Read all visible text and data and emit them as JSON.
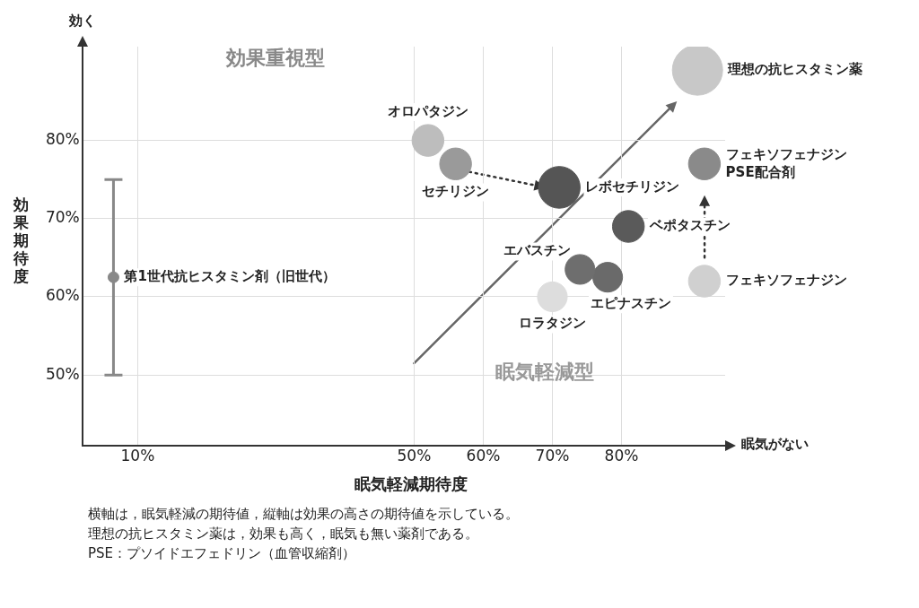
{
  "chart_data": {
    "type": "bubble",
    "xlabel": "眠気軽減期待度",
    "ylabel": "効果期待度",
    "xlim": [
      2,
      95
    ],
    "xticks": [
      {
        "value": 10,
        "label": "10%"
      },
      {
        "value": 50,
        "label": "50%"
      },
      {
        "value": 60,
        "label": "60%"
      },
      {
        "value": 70,
        "label": "70%"
      },
      {
        "value": 80,
        "label": "80%"
      }
    ],
    "ylim": [
      41,
      92
    ],
    "yticks": [
      {
        "value": 50,
        "label": "50%"
      },
      {
        "value": 60,
        "label": "60%"
      },
      {
        "value": 70,
        "label": "70%"
      },
      {
        "value": 80,
        "label": "80%"
      }
    ],
    "grid": true,
    "legend": false,
    "marker": "circle",
    "series": [
      {
        "name": "オロパタジン",
        "color": "#bdbdbd",
        "x": [
          52
        ],
        "values": [
          80
        ],
        "sizes": [
          0.4
        ]
      },
      {
        "name": "セチリジン",
        "color": "#9a9a9a",
        "x": [
          56
        ],
        "values": [
          77
        ],
        "sizes": [
          0.4
        ]
      },
      {
        "name": "レボセチリジン",
        "color": "#555555",
        "x": [
          71
        ],
        "values": [
          74
        ],
        "sizes": [
          0.69
        ]
      },
      {
        "name": "エバスチン",
        "color": "#6e6e6e",
        "x": [
          74
        ],
        "values": [
          63.5
        ],
        "sizes": [
          0.35
        ]
      },
      {
        "name": "ベポタスチン",
        "color": "#5a5a5a",
        "x": [
          81
        ],
        "values": [
          69
        ],
        "sizes": [
          0.4
        ]
      },
      {
        "name": "エピナスチン",
        "color": "#6a6a6a",
        "x": [
          78
        ],
        "values": [
          62.5
        ],
        "sizes": [
          0.35
        ]
      },
      {
        "name": "ロラタジン",
        "color": "#dddddd",
        "x": [
          70
        ],
        "values": [
          60
        ],
        "sizes": [
          0.35
        ]
      },
      {
        "name": "フェキソフェナジン",
        "color": "#d0d0d0",
        "x": [
          92
        ],
        "values": [
          62
        ],
        "sizes": [
          0.4
        ]
      },
      {
        "name": "フェキソフェナジン\nPSE配合剤",
        "color": "#8a8a8a",
        "x": [
          92
        ],
        "values": [
          77
        ],
        "sizes": [
          0.4
        ]
      },
      {
        "name": "理想の抗ヒスタミン薬",
        "color": "#c8c8c8",
        "x": [
          91
        ],
        "values": [
          89
        ],
        "sizes": [
          1
        ]
      },
      {
        "name": "第1世代抗ヒスタミン剤（旧世代）",
        "type": "scatter",
        "color": "#888888",
        "x": [
          6.5
        ],
        "values": [
          62.5
        ],
        "errors": [
          [
            50,
            75
          ]
        ]
      }
    ],
    "annotations": [
      "効く",
      "眠気がない",
      "効果重視型",
      "眠気軽減型",
      "横軸は，眠気軽減の期待値，縦軸は効果の高さの期待値を示している。",
      "理想の抗ヒスタミン薬は，効果も高く，眠気も無い薬剤である。",
      "PSE：プソイドエフェドリン（血管収縮剤）"
    ]
  }
}
